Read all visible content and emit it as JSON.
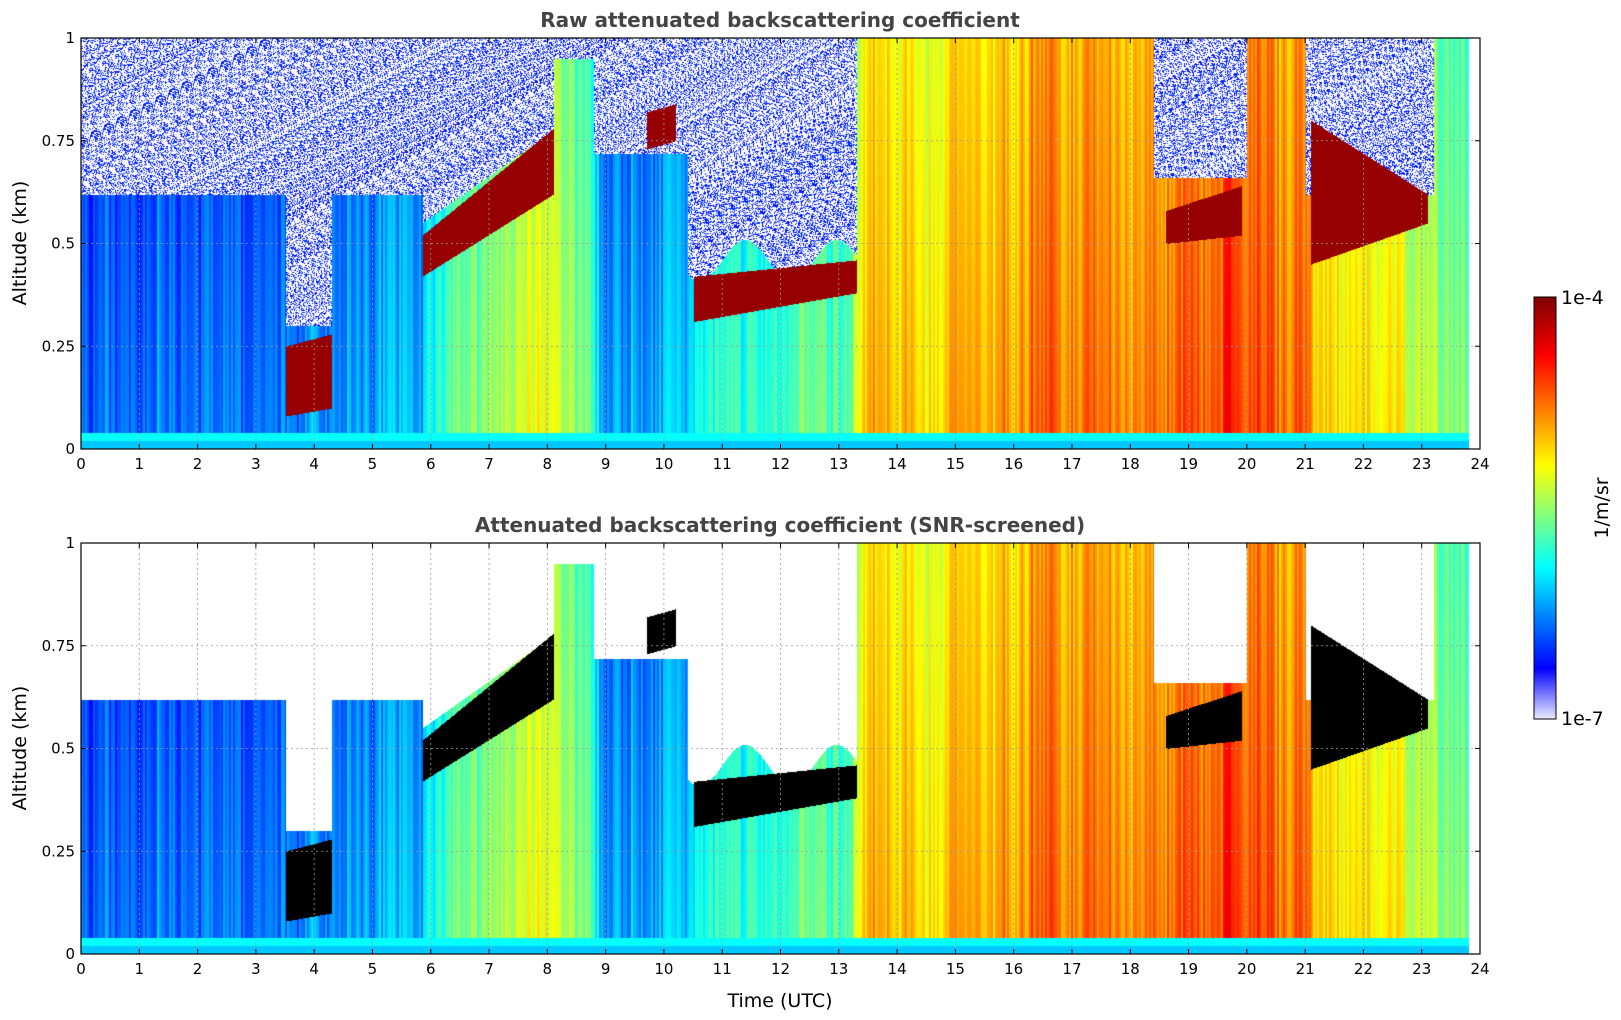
{
  "chart_data": [
    {
      "type": "heatmap",
      "title": "Raw attenuated backscattering coefficient",
      "xlabel": "",
      "ylabel": "Altitude (km)",
      "xlim": [
        0,
        24
      ],
      "ylim": [
        0,
        1
      ],
      "x_ticks": [
        "0",
        "1",
        "2",
        "3",
        "4",
        "5",
        "6",
        "7",
        "8",
        "9",
        "10",
        "11",
        "12",
        "13",
        "14",
        "15",
        "16",
        "17",
        "18",
        "19",
        "20",
        "21",
        "22",
        "23",
        "24"
      ],
      "y_ticks": [
        "0",
        "0.25",
        "0.5",
        "0.75",
        "1"
      ],
      "grid": true,
      "data_end_hour": 23.8,
      "color_scale": "log",
      "screened": false,
      "layers": [
        {
          "t0": 3.5,
          "t1": 4.3,
          "base": [
            0.08,
            0.1
          ],
          "top": [
            0.25,
            0.28
          ]
        },
        {
          "t0": 5.85,
          "t1": 8.1,
          "base": [
            0.42,
            0.62
          ],
          "top": [
            0.52,
            0.78
          ]
        },
        {
          "t0": 9.7,
          "t1": 10.2,
          "base": [
            0.73,
            0.75
          ],
          "top": [
            0.82,
            0.84
          ]
        },
        {
          "t0": 10.5,
          "t1": 13.3,
          "base": [
            0.31,
            0.38
          ],
          "top": [
            0.42,
            0.46
          ]
        },
        {
          "t0": 18.6,
          "t1": 19.9,
          "base": [
            0.5,
            0.52
          ],
          "top": [
            0.58,
            0.64
          ]
        },
        {
          "t0": 21.1,
          "t1": 23.1,
          "base": [
            0.45,
            0.55
          ],
          "top": [
            0.8,
            0.62
          ]
        }
      ]
    },
    {
      "type": "heatmap",
      "title": "Attenuated backscattering coefficient (SNR-screened)",
      "xlabel": "Time (UTC)",
      "ylabel": "Altitude (km)",
      "xlim": [
        0,
        24
      ],
      "ylim": [
        0,
        1
      ],
      "x_ticks": [
        "0",
        "1",
        "2",
        "3",
        "4",
        "5",
        "6",
        "7",
        "8",
        "9",
        "10",
        "11",
        "12",
        "13",
        "14",
        "15",
        "16",
        "17",
        "18",
        "19",
        "20",
        "21",
        "22",
        "23",
        "24"
      ],
      "y_ticks": [
        "0",
        "0.25",
        "0.5",
        "0.75",
        "1"
      ],
      "grid": true,
      "data_end_hour": 23.8,
      "color_scale": "log",
      "screened": true,
      "layers": [
        {
          "t0": 3.5,
          "t1": 4.3,
          "base": [
            0.08,
            0.1
          ],
          "top": [
            0.25,
            0.28
          ]
        },
        {
          "t0": 5.85,
          "t1": 8.1,
          "base": [
            0.42,
            0.62
          ],
          "top": [
            0.52,
            0.78
          ]
        },
        {
          "t0": 9.7,
          "t1": 10.2,
          "base": [
            0.73,
            0.75
          ],
          "top": [
            0.82,
            0.84
          ]
        },
        {
          "t0": 10.5,
          "t1": 13.3,
          "base": [
            0.31,
            0.38
          ],
          "top": [
            0.42,
            0.46
          ]
        },
        {
          "t0": 18.6,
          "t1": 19.9,
          "base": [
            0.5,
            0.52
          ],
          "top": [
            0.58,
            0.64
          ]
        },
        {
          "t0": 21.1,
          "t1": 23.1,
          "base": [
            0.45,
            0.55
          ],
          "top": [
            0.8,
            0.62
          ]
        }
      ]
    }
  ],
  "colorbar": {
    "max_label": "1e-4",
    "min_label": "1e-7",
    "unit_label": "1/m/sr",
    "colormap": "jet",
    "colors": [
      "#ebebff",
      "#0000ff",
      "#00ffff",
      "#ffff00",
      "#ff0000",
      "#800000"
    ]
  }
}
